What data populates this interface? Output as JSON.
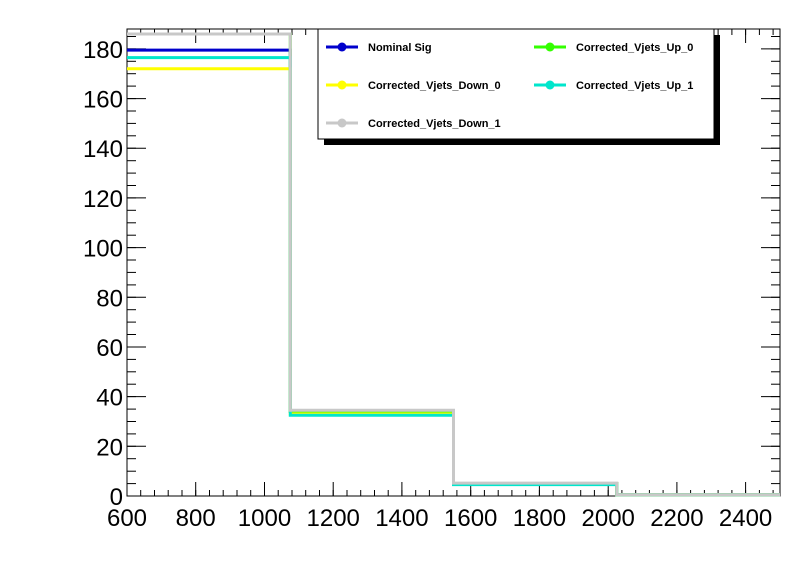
{
  "chart_data": {
    "type": "line",
    "style": "step",
    "title": "",
    "xlabel": "",
    "ylabel": "",
    "xlim": [
      600,
      2500
    ],
    "ylim": [
      0,
      188
    ],
    "x_ticks": [
      600,
      800,
      1000,
      1200,
      1400,
      1600,
      1800,
      2000,
      2200,
      2400
    ],
    "y_ticks": [
      0,
      20,
      40,
      60,
      80,
      100,
      120,
      140,
      160,
      180
    ],
    "bin_edges": [
      600,
      1075,
      1550,
      2025,
      2500
    ],
    "grid": false,
    "legend_position": "top-right",
    "series": [
      {
        "name": "Nominal Sig",
        "color": "#0000cc",
        "values": [
          179.5,
          34.0,
          5.0,
          0.5
        ]
      },
      {
        "name": "Corrected_Vjets_Up_0",
        "color": "#33ff00",
        "values": [
          186.0,
          34.0,
          5.0,
          0.5
        ]
      },
      {
        "name": "Corrected_Vjets_Down_0",
        "color": "#ffff00",
        "values": [
          172.0,
          33.0,
          4.8,
          0.5
        ]
      },
      {
        "name": "Corrected_Vjets_Up_1",
        "color": "#00e6cc",
        "values": [
          176.5,
          32.5,
          4.6,
          0.5
        ]
      },
      {
        "name": "Corrected_Vjets_Down_1",
        "color": "#c8c8c8",
        "values": [
          186.0,
          34.5,
          5.2,
          0.5
        ]
      }
    ]
  }
}
